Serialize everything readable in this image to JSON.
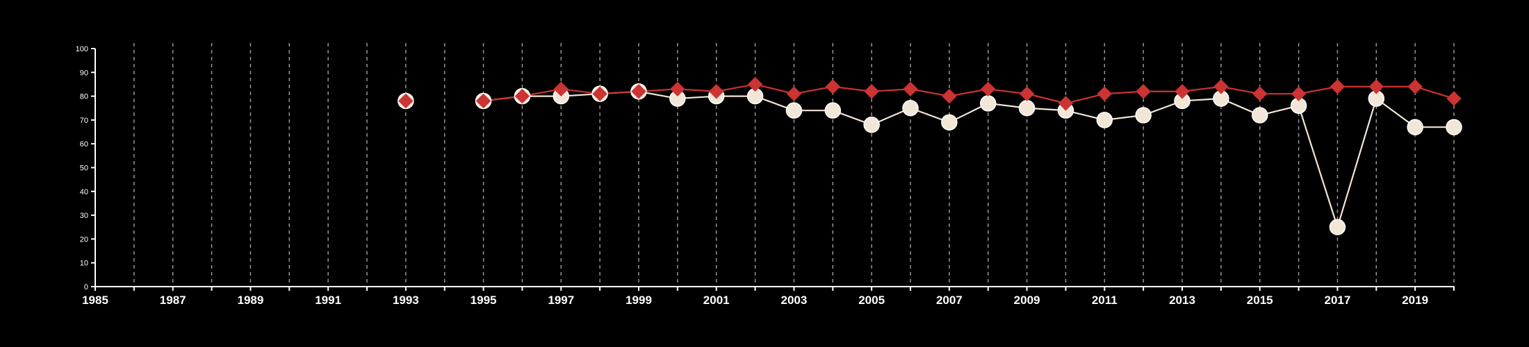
{
  "chart_data": {
    "type": "line",
    "title": "",
    "xlabel": "",
    "ylabel": "",
    "xlim": [
      1985,
      2020
    ],
    "ylim": [
      0,
      100
    ],
    "yticks": [
      0,
      10,
      20,
      30,
      40,
      50,
      60,
      70,
      80,
      90,
      100
    ],
    "xticks_labeled": [
      1985,
      1987,
      1989,
      1991,
      1993,
      1995,
      1997,
      1999,
      2001,
      2003,
      2005,
      2007,
      2009,
      2011,
      2013,
      2015,
      2017,
      2019
    ],
    "xticks_all": [
      1985,
      1986,
      1987,
      1988,
      1989,
      1990,
      1991,
      1992,
      1993,
      1994,
      1995,
      1996,
      1997,
      1998,
      1999,
      2000,
      2001,
      2002,
      2003,
      2004,
      2005,
      2006,
      2007,
      2008,
      2009,
      2010,
      2011,
      2012,
      2013,
      2014,
      2015,
      2016,
      2017,
      2018,
      2019,
      2020
    ],
    "grid": "vertical dashed",
    "legend": "none",
    "series": [
      {
        "marker": "circle",
        "color": "#f2e6d6",
        "stroke": "#f2e6d6",
        "x": [
          1993,
          1995,
          1996,
          1997,
          1998,
          1999,
          2000,
          2001,
          2002,
          2003,
          2004,
          2005,
          2006,
          2007,
          2008,
          2009,
          2010,
          2011,
          2012,
          2013,
          2014,
          2015,
          2016,
          2017,
          2018,
          2019,
          2020
        ],
        "y": [
          78,
          78,
          80,
          80,
          81,
          82,
          79,
          80,
          80,
          74,
          74,
          68,
          75,
          69,
          77,
          75,
          74,
          70,
          72,
          78,
          79,
          72,
          76,
          25,
          79,
          67,
          67
        ]
      },
      {
        "marker": "diamond",
        "color": "#cc3333",
        "stroke": "#cc3333",
        "x": [
          1993,
          1995,
          1996,
          1997,
          1998,
          1999,
          2000,
          2001,
          2002,
          2003,
          2004,
          2005,
          2006,
          2007,
          2008,
          2009,
          2010,
          2011,
          2012,
          2013,
          2014,
          2015,
          2016,
          2017,
          2018,
          2019,
          2020
        ],
        "y": [
          78,
          78,
          80,
          83,
          81,
          82,
          83,
          82,
          85,
          81,
          84,
          82,
          83,
          80,
          83,
          81,
          77,
          81,
          82,
          82,
          84,
          81,
          81,
          84,
          84,
          84,
          79
        ]
      }
    ]
  }
}
